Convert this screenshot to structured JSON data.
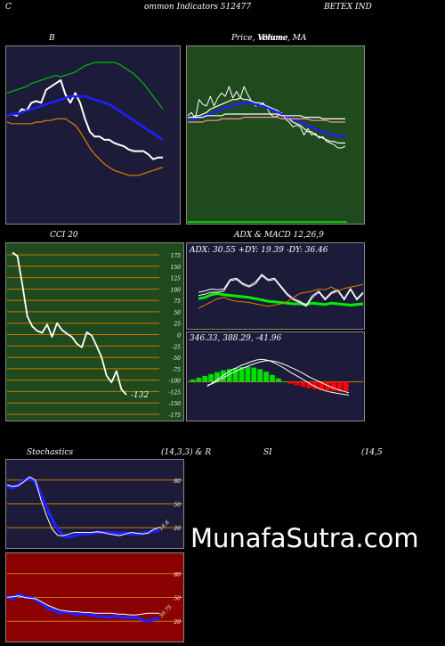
{
  "header": {
    "left": "C",
    "title": "ommon  Indicators 512477",
    "right": "BETEX  IND"
  },
  "colors": {
    "navy": "#1c1c3a",
    "green": "#1e4a1e",
    "red": "#8b0000"
  },
  "watermark": "MunafaSutra.com",
  "chart_data": [
    {
      "type": "line",
      "panel": "bollinger",
      "title": "B",
      "ylim": [
        0,
        100
      ],
      "series": [
        {
          "color": "#ffffff",
          "values": [
            62,
            63,
            62,
            66,
            65,
            70,
            71,
            70,
            78,
            80,
            82,
            84,
            75,
            70,
            76,
            70,
            60,
            52,
            49,
            49,
            47,
            47,
            45,
            44,
            43,
            41,
            40,
            40,
            40,
            38,
            35,
            36,
            36
          ]
        },
        {
          "color": "#00bb00",
          "values": [
            76,
            77,
            78,
            79,
            80,
            82,
            83,
            84,
            85,
            86,
            87,
            86,
            87,
            88,
            89,
            91,
            93,
            94,
            95,
            95,
            95,
            95,
            95,
            94,
            92,
            90,
            88,
            85,
            82,
            78,
            74,
            70,
            66
          ]
        },
        {
          "color": "#2020ff",
          "values": [
            62,
            63,
            63,
            64,
            65,
            66,
            67,
            68,
            69,
            70,
            71,
            72,
            73,
            74,
            74,
            74,
            74,
            73,
            72,
            71,
            70,
            69,
            67,
            65,
            63,
            61,
            59,
            57,
            55,
            53,
            51,
            49,
            47
          ]
        },
        {
          "color": "#d97f00",
          "values": [
            58,
            57,
            57,
            57,
            57,
            57,
            58,
            58,
            59,
            59,
            60,
            60,
            60,
            58,
            56,
            52,
            47,
            42,
            38,
            35,
            32,
            30,
            28,
            27,
            26,
            25,
            25,
            25,
            26,
            27,
            28,
            29,
            30
          ]
        }
      ]
    },
    {
      "type": "line",
      "panel": "price-volume-ma",
      "title": "Price,  Volume,  MA",
      "overlay_titles": [
        "Volume",
        "Price"
      ],
      "ylim": [
        0,
        100
      ],
      "series": [
        {
          "color": "#ffffff",
          "values": [
            62,
            64,
            60,
            72,
            69,
            68,
            74,
            68,
            73,
            76,
            74,
            80,
            73,
            77,
            73,
            80,
            75,
            71,
            68,
            68,
            70,
            67,
            63,
            61,
            62,
            64,
            60,
            58,
            55,
            56,
            55,
            50,
            54,
            50,
            51,
            48,
            49,
            46,
            45,
            44,
            42,
            42,
            43
          ]
        },
        {
          "color": "#ffffff",
          "values": [
            60,
            60,
            62,
            62,
            63,
            64,
            66,
            67,
            68,
            69,
            70,
            71,
            72,
            72,
            73,
            72,
            72,
            71,
            70,
            70,
            69,
            68,
            67,
            66,
            65,
            63,
            62,
            60,
            58,
            57,
            56,
            54,
            52,
            52,
            50,
            49,
            48,
            47,
            46,
            46,
            45,
            45,
            45
          ]
        },
        {
          "color": "#2020ff",
          "values": [
            60,
            60,
            60,
            61,
            61,
            62,
            63,
            64,
            65,
            66,
            67,
            67,
            68,
            69,
            69,
            70,
            70,
            70,
            69,
            68,
            68,
            67,
            66,
            65,
            64,
            63,
            62,
            61,
            60,
            59,
            58,
            57,
            56,
            55,
            54,
            53,
            52,
            51,
            50,
            50,
            50,
            49,
            49
          ]
        },
        {
          "color": "#ff9090",
          "values": [
            58,
            58,
            58,
            58,
            58,
            59,
            59,
            59,
            59,
            60,
            60,
            60,
            60,
            60,
            60,
            61,
            61,
            61,
            61,
            61,
            61,
            61,
            61,
            61,
            61,
            60,
            60,
            60,
            60,
            60,
            60,
            60,
            60,
            59,
            59,
            59,
            59,
            59,
            58,
            58,
            58,
            58,
            58
          ]
        },
        {
          "color": "#ffffff",
          "values": [
            61,
            61,
            61,
            61,
            61,
            62,
            62,
            62,
            62,
            62,
            63,
            63,
            63,
            63,
            63,
            63,
            63,
            63,
            63,
            63,
            63,
            63,
            63,
            63,
            63,
            62,
            62,
            62,
            62,
            62,
            62,
            61,
            61,
            61,
            61,
            61,
            60,
            60,
            60,
            60,
            60,
            60,
            60
          ]
        }
      ]
    },
    {
      "type": "line",
      "panel": "cci",
      "title": "CCI 20",
      "ylim": [
        -175,
        175
      ],
      "ticks": [
        "175",
        "150",
        "125",
        "100",
        "75",
        "50",
        "25",
        "0",
        "-25",
        "-50",
        "-75",
        "-100",
        "-125",
        "-150",
        "-175"
      ],
      "value_label": "-132",
      "series": [
        {
          "color": "#ffffff",
          "values": [
            180,
            172,
            110,
            40,
            18,
            8,
            4,
            22,
            -5,
            25,
            10,
            2,
            -5,
            -20,
            -28,
            5,
            -2,
            -25,
            -50,
            -90,
            -105,
            -80,
            -120,
            -132
          ]
        }
      ]
    },
    {
      "type": "line",
      "panel": "adx",
      "title": "ADX  & MACD 12,26,9",
      "stats": "ADX: 30.55  +DY: 19.39  -DY: 36.46",
      "ylim": [
        0,
        100
      ],
      "series": [
        {
          "color": "#00ee00",
          "values": [
            40,
            42,
            46,
            48,
            46,
            45,
            44,
            43,
            42,
            40,
            38,
            36,
            35,
            34,
            33,
            32,
            32,
            31,
            33,
            32,
            31,
            33,
            32,
            31,
            30,
            31,
            32
          ]
        },
        {
          "color": "#ffffff",
          "values": [
            50,
            52,
            55,
            54,
            55,
            70,
            72,
            64,
            60,
            66,
            78,
            70,
            72,
            60,
            48,
            40,
            36,
            30,
            45,
            52,
            40,
            50,
            54,
            40,
            56,
            40,
            50
          ]
        },
        {
          "color": "#ffffff",
          "values": [
            45,
            47,
            50,
            50,
            52,
            68,
            70,
            62,
            58,
            63,
            76,
            68,
            70,
            58,
            46,
            38,
            34,
            28,
            42,
            50,
            38,
            48,
            52,
            38,
            54,
            38,
            48
          ]
        },
        {
          "color": "#d97f00",
          "values": [
            25,
            30,
            35,
            40,
            42,
            38,
            36,
            35,
            34,
            32,
            30,
            28,
            30,
            32,
            35,
            42,
            48,
            50,
            52,
            55,
            54,
            58,
            52,
            56,
            58,
            60,
            62
          ]
        }
      ]
    },
    {
      "type": "bar",
      "panel": "macd",
      "stats": "346.33,  388.29,  -41.96",
      "ylim": [
        -150,
        150
      ],
      "values": [
        10,
        18,
        26,
        34,
        42,
        50,
        56,
        60,
        64,
        66,
        62,
        55,
        44,
        30,
        15,
        2,
        -8,
        -15,
        -22,
        -28,
        -32,
        -36,
        -38,
        -40,
        -42,
        -42
      ],
      "series": [
        {
          "color": "#ffffff",
          "name": "macd",
          "values": [
            -20,
            -5,
            10,
            24,
            38,
            52,
            62,
            72,
            80,
            88,
            95,
            98,
            96,
            90,
            80,
            68,
            56,
            42,
            30,
            18,
            5,
            -8,
            -20,
            -30,
            -38,
            -44,
            -48,
            -52,
            -55,
            -58
          ]
        },
        {
          "color": "#ffffff",
          "name": "signal",
          "values": [
            -15,
            -8,
            2,
            14,
            26,
            38,
            48,
            58,
            66,
            74,
            82,
            88,
            92,
            92,
            88,
            82,
            74,
            64,
            54,
            44,
            32,
            20,
            10,
            0,
            -10,
            -20,
            -28,
            -36,
            -42,
            -48
          ]
        }
      ]
    },
    {
      "type": "line",
      "panel": "stochastics",
      "title": "Stochastics",
      "params": "(14,3,3) & R",
      "rsi_title": "SI",
      "rsi_params": "(14,5",
      "ylim": [
        0,
        100
      ],
      "ticks": [
        "80",
        "50",
        "20"
      ],
      "value_label": "16.6",
      "series": [
        {
          "color": "#2020ff",
          "values": [
            72,
            70,
            74,
            80,
            82,
            78,
            62,
            45,
            30,
            18,
            10,
            8,
            10,
            12,
            12,
            13,
            14,
            14,
            14,
            13,
            13,
            13,
            12,
            12,
            13,
            14,
            16,
            16
          ]
        },
        {
          "color": "#ffffff",
          "values": [
            74,
            72,
            73,
            78,
            84,
            80,
            55,
            35,
            18,
            10,
            10,
            12,
            14,
            14,
            14,
            14,
            15,
            14,
            12,
            11,
            10,
            12,
            14,
            13,
            12,
            13,
            18,
            20
          ]
        }
      ]
    },
    {
      "type": "line",
      "panel": "rsi",
      "ylim": [
        0,
        100
      ],
      "ticks": [
        "80",
        "50",
        "20"
      ],
      "value_label": "30.75",
      "series": [
        {
          "color": "#2020ff",
          "values": [
            52,
            48,
            54,
            50,
            50,
            46,
            42,
            36,
            34,
            30,
            32,
            30,
            28,
            30,
            28,
            27,
            26,
            25,
            26,
            26,
            25,
            24,
            25,
            22,
            20,
            22,
            24
          ]
        },
        {
          "color": "#ffffff",
          "values": [
            50,
            51,
            52,
            50,
            49,
            48,
            44,
            40,
            37,
            34,
            33,
            32,
            32,
            31,
            31,
            30,
            30,
            30,
            30,
            29,
            29,
            28,
            28,
            29,
            30,
            30,
            30
          ]
        }
      ]
    }
  ]
}
